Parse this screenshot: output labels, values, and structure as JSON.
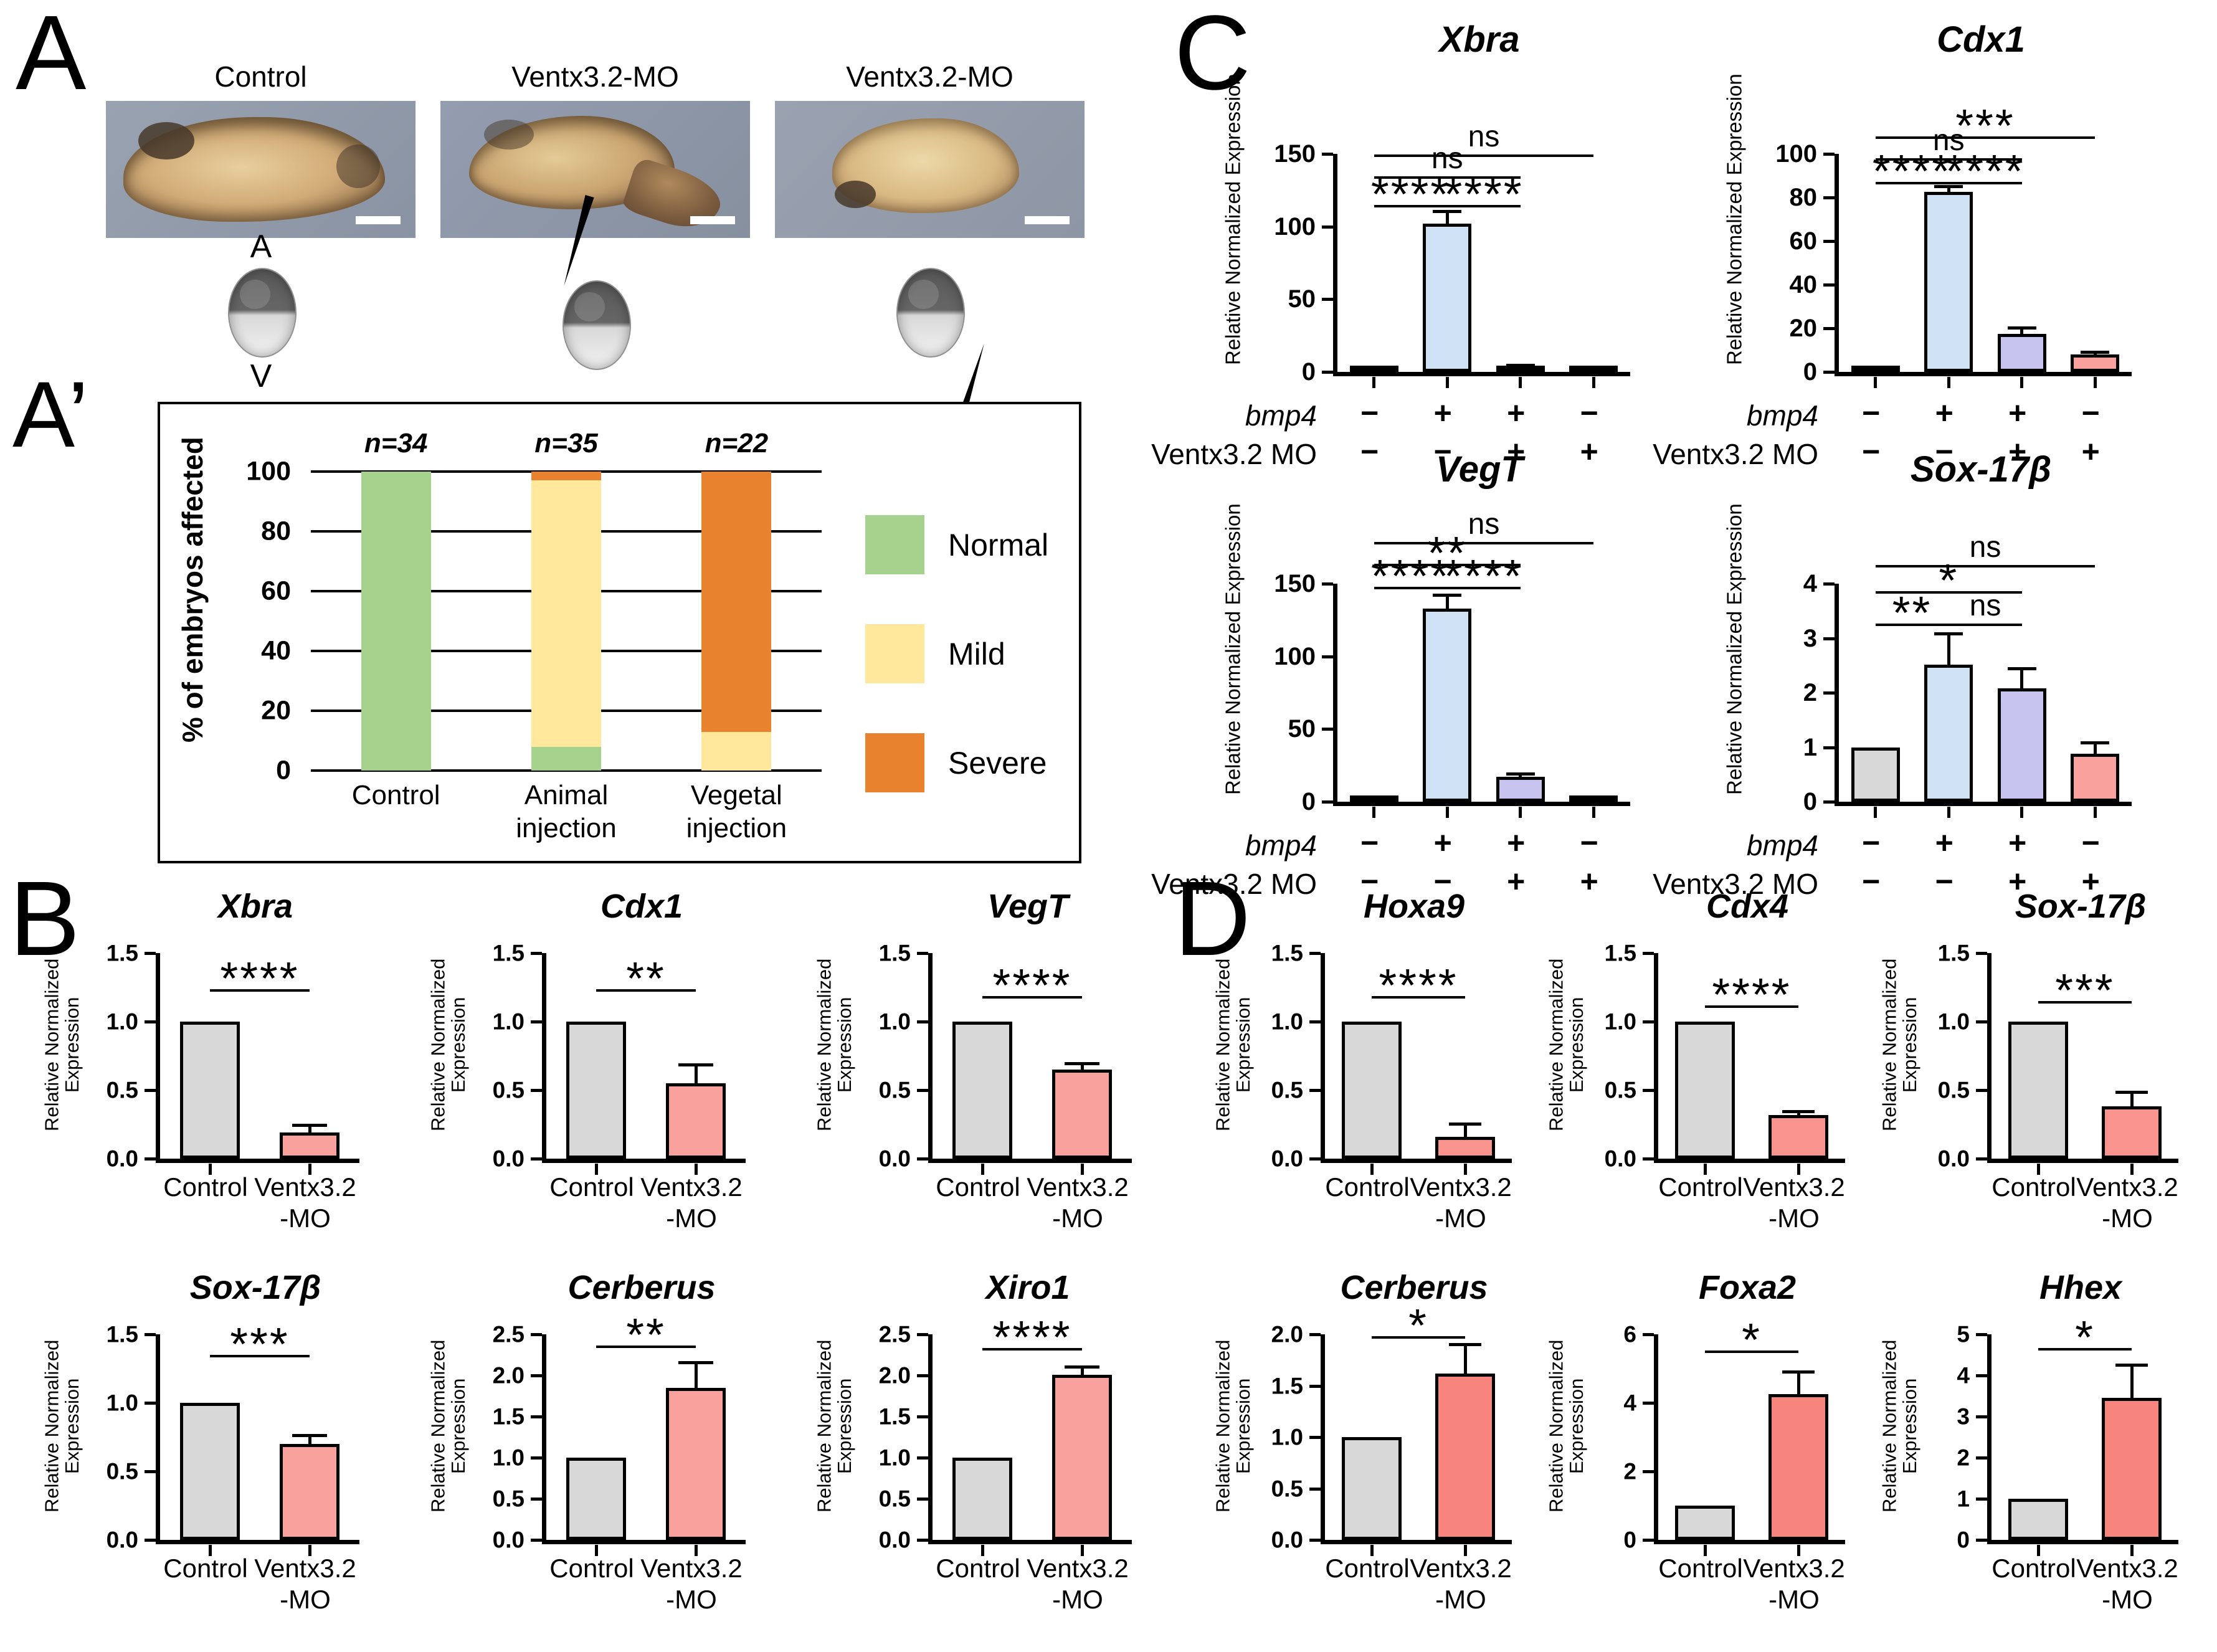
{
  "panelA": {
    "label": "A",
    "photos": [
      {
        "caption": "Control"
      },
      {
        "caption": "Ventx3.2-MO"
      },
      {
        "caption": "Ventx3.2-MO"
      }
    ],
    "schematic": {
      "top": "A",
      "bottom": "V"
    }
  },
  "panelA2": {
    "label": "A’"
  },
  "panelB": {
    "label": "B"
  },
  "panelC": {
    "label": "C"
  },
  "panelD": {
    "label": "D"
  },
  "chart_data": [
    {
      "id": "a-affected",
      "panel": "A2",
      "type": "stacked-bar",
      "title": "",
      "ylabel": "% of embryos affected",
      "ymax": 100,
      "yticks": [
        0,
        20,
        40,
        60,
        80,
        100
      ],
      "dec": 0,
      "categories": [
        "Control",
        "Animal\ninjection",
        "Vegetal\ninjection"
      ],
      "n_labels": [
        "n=34",
        "n=35",
        "n=22"
      ],
      "series": [
        {
          "name": "Normal",
          "color": "#A7D28E",
          "values": [
            100,
            8,
            0
          ]
        },
        {
          "name": "Mild",
          "color": "#FFE79B",
          "values": [
            0,
            89,
            13
          ]
        },
        {
          "name": "Severe",
          "color": "#E8822F",
          "values": [
            0,
            3,
            87
          ]
        }
      ],
      "legend_position": "right",
      "grid": true
    },
    {
      "id": "b-xbra",
      "panel": "B",
      "type": "bar",
      "title": "Xbra",
      "ylabel": "Relative Normalized Expression",
      "ymax": 1.5,
      "yticks": [
        0,
        0.5,
        1,
        1.5
      ],
      "dec": 1,
      "categories": [
        "Control",
        "Ventx3.2\n-MO"
      ],
      "values": [
        1.0,
        0.19
      ],
      "errors": [
        null,
        0.24
      ],
      "colors": [
        "#D8D8D8",
        "#F9A29D"
      ],
      "sig": [
        {
          "a": 0,
          "b": 1,
          "y": 1.22,
          "label": "****"
        }
      ]
    },
    {
      "id": "b-cdx1",
      "panel": "B",
      "type": "bar",
      "title": "Cdx1",
      "ylabel": "Relative Normalized Expression",
      "ymax": 1.5,
      "yticks": [
        0,
        0.5,
        1,
        1.5
      ],
      "dec": 1,
      "categories": [
        "Control",
        "Ventx3.2\n-MO"
      ],
      "values": [
        1.0,
        0.55
      ],
      "errors": [
        null,
        0.68
      ],
      "colors": [
        "#D8D8D8",
        "#F9A29D"
      ],
      "sig": [
        {
          "a": 0,
          "b": 1,
          "y": 1.22,
          "label": "**"
        }
      ]
    },
    {
      "id": "b-vegt",
      "panel": "B",
      "type": "bar",
      "title": "VegT",
      "ylabel": "Relative Normalized Expression",
      "ymax": 1.5,
      "yticks": [
        0,
        0.5,
        1,
        1.5
      ],
      "dec": 1,
      "categories": [
        "Control",
        "Ventx3.2\n-MO"
      ],
      "values": [
        1.0,
        0.65
      ],
      "errors": [
        null,
        0.69
      ],
      "colors": [
        "#D8D8D8",
        "#F9A29D"
      ],
      "sig": [
        {
          "a": 0,
          "b": 1,
          "y": 1.17,
          "label": "****"
        }
      ]
    },
    {
      "id": "b-sox17b",
      "panel": "B",
      "type": "bar",
      "title": "Sox-17β",
      "ylabel": "Relative Normalized Expression",
      "ymax": 1.5,
      "yticks": [
        0,
        0.5,
        1,
        1.5
      ],
      "dec": 1,
      "categories": [
        "Control",
        "Ventx3.2\n-MO"
      ],
      "values": [
        1.0,
        0.7
      ],
      "errors": [
        null,
        0.76
      ],
      "colors": [
        "#D8D8D8",
        "#F9A29D"
      ],
      "sig": [
        {
          "a": 0,
          "b": 1,
          "y": 1.33,
          "label": "***"
        }
      ]
    },
    {
      "id": "b-cerberus",
      "panel": "B",
      "type": "bar",
      "title": "Cerberus",
      "ylabel": "Relative Normalized Expression",
      "ymax": 2.5,
      "yticks": [
        0,
        0.5,
        1,
        1.5,
        2,
        2.5
      ],
      "dec": 1,
      "categories": [
        "Control",
        "Ventx3.2\n-MO"
      ],
      "values": [
        1.0,
        1.85
      ],
      "errors": [
        null,
        2.15
      ],
      "colors": [
        "#D8D8D8",
        "#F9A29D"
      ],
      "sig": [
        {
          "a": 0,
          "b": 1,
          "y": 2.33,
          "label": "**"
        }
      ]
    },
    {
      "id": "b-xiro1",
      "panel": "B",
      "type": "bar",
      "title": "Xiro1",
      "ylabel": "Relative Normalized Expression",
      "ymax": 2.5,
      "yticks": [
        0,
        0.5,
        1,
        1.5,
        2,
        2.5
      ],
      "dec": 1,
      "categories": [
        "Control",
        "Ventx3.2\n-MO"
      ],
      "values": [
        1.0,
        2.01
      ],
      "errors": [
        null,
        2.1
      ],
      "colors": [
        "#D8D8D8",
        "#F9A29D"
      ],
      "sig": [
        {
          "a": 0,
          "b": 1,
          "y": 2.3,
          "label": "****"
        }
      ]
    },
    {
      "id": "c-xbra",
      "panel": "C",
      "type": "bar",
      "title": "Xbra",
      "ylabel": "Relative Normalized Expression",
      "ymax": 150,
      "yticks": [
        0,
        50,
        100,
        150
      ],
      "dec": 0,
      "values": [
        1,
        102,
        3,
        0.6
      ],
      "errors": [
        null,
        110,
        4.5,
        null
      ],
      "colors": [
        "#3A3A3A",
        "#CEE1F5",
        "#C7C5F0",
        "#3A3A3A"
      ],
      "cond": [
        {
          "label": "bmp4",
          "sym": [
            "−",
            "+",
            "+",
            "−"
          ]
        },
        {
          "label": "Ventx3.2 MO",
          "sym": [
            "−",
            "−",
            "+",
            "+"
          ]
        }
      ],
      "sig": [
        {
          "a": 0,
          "b": 1,
          "y": 113,
          "label": "****"
        },
        {
          "a": 1,
          "b": 2,
          "y": 113,
          "label": "****"
        },
        {
          "a": 0,
          "b": 2,
          "y": 133,
          "label": "ns"
        },
        {
          "a": 0,
          "b": 3,
          "y": 148,
          "label": "ns"
        }
      ]
    },
    {
      "id": "c-cdx1",
      "panel": "C",
      "type": "bar",
      "title": "Cdx1",
      "ylabel": "Relative Normalized Expression",
      "ymax": 100,
      "yticks": [
        0,
        20,
        40,
        60,
        80,
        100
      ],
      "dec": 0,
      "values": [
        0.5,
        82.5,
        17.5,
        8
      ],
      "errors": [
        null,
        85,
        20,
        9
      ],
      "colors": [
        "#3A3A3A",
        "#CEE1F5",
        "#C7C5F0",
        "#F9A29D"
      ],
      "cond": [
        {
          "label": "bmp4",
          "sym": [
            "−",
            "+",
            "+",
            "−"
          ]
        },
        {
          "label": "Ventx3.2 MO",
          "sym": [
            "−",
            "−",
            "+",
            "+"
          ]
        }
      ],
      "sig": [
        {
          "a": 0,
          "b": 1,
          "y": 86,
          "label": "****"
        },
        {
          "a": 1,
          "b": 2,
          "y": 86,
          "label": "****"
        },
        {
          "a": 0,
          "b": 2,
          "y": 97,
          "label": "ns"
        },
        {
          "a": 0,
          "b": 3,
          "y": 107,
          "label": "***"
        }
      ]
    },
    {
      "id": "c-vegt",
      "panel": "C",
      "type": "bar",
      "title": "VegT",
      "ylabel": "Relative Normalized Expression",
      "ymax": 150,
      "yticks": [
        0,
        50,
        100,
        150
      ],
      "dec": 0,
      "values": [
        1,
        133,
        17,
        2.5
      ],
      "errors": [
        null,
        142,
        19,
        3.2
      ],
      "colors": [
        "#3A3A3A",
        "#CEE1F5",
        "#C7C5F0",
        "#2B2B2B"
      ],
      "cond": [
        {
          "label": "bmp4",
          "sym": [
            "−",
            "+",
            "+",
            "−"
          ]
        },
        {
          "label": "Ventx3.2 MO",
          "sym": [
            "−",
            "−",
            "+",
            "+"
          ]
        }
      ],
      "sig": [
        {
          "a": 0,
          "b": 1,
          "y": 146,
          "label": "****"
        },
        {
          "a": 1,
          "b": 2,
          "y": 146,
          "label": "****"
        },
        {
          "a": 0,
          "b": 2,
          "y": 162,
          "label": "**"
        },
        {
          "a": 0,
          "b": 3,
          "y": 177,
          "label": "ns"
        }
      ]
    },
    {
      "id": "c-sox17b",
      "panel": "C",
      "type": "bar",
      "title": "Sox-17β",
      "ylabel": "Relative Normalized Expression",
      "ymax": 4,
      "yticks": [
        0,
        1,
        2,
        3,
        4
      ],
      "dec": 0,
      "values": [
        1.0,
        2.52,
        2.08,
        0.88
      ],
      "errors": [
        null,
        3.07,
        2.43,
        1.08
      ],
      "colors": [
        "#D8D8D8",
        "#CEE1F5",
        "#C7C5F0",
        "#F9A29D"
      ],
      "cond": [
        {
          "label": "bmp4",
          "sym": [
            "−",
            "+",
            "+",
            "−"
          ]
        },
        {
          "label": "Ventx3.2 MO",
          "sym": [
            "−",
            "−",
            "+",
            "+"
          ]
        }
      ],
      "sig": [
        {
          "a": 0,
          "b": 1,
          "y": 3.22,
          "label": "**"
        },
        {
          "a": 1,
          "b": 2,
          "y": 3.22,
          "label": "ns"
        },
        {
          "a": 0,
          "b": 2,
          "y": 3.82,
          "label": "*"
        },
        {
          "a": 0,
          "b": 3,
          "y": 4.3,
          "label": "ns"
        }
      ]
    },
    {
      "id": "d-hoxa9",
      "panel": "D",
      "type": "bar",
      "title": "Hoxa9",
      "ylabel": "Relative Normalized Expression",
      "ymax": 1.5,
      "yticks": [
        0,
        0.5,
        1,
        1.5
      ],
      "dec": 1,
      "categories": [
        "Control",
        "Ventx3.2\n-MO"
      ],
      "values": [
        1.0,
        0.16
      ],
      "errors": [
        null,
        0.25
      ],
      "colors": [
        "#D8D8D8",
        "#F9938D"
      ],
      "sig": [
        {
          "a": 0,
          "b": 1,
          "y": 1.17,
          "label": "****"
        }
      ]
    },
    {
      "id": "d-cdx4",
      "panel": "D",
      "type": "bar",
      "title": "Cdx4",
      "ylabel": "Relative Normalized Expression",
      "ymax": 1.5,
      "yticks": [
        0,
        0.5,
        1,
        1.5
      ],
      "dec": 1,
      "categories": [
        "Control",
        "Ventx3.2\n-MO"
      ],
      "values": [
        1.0,
        0.32
      ],
      "errors": [
        null,
        0.34
      ],
      "colors": [
        "#D8D8D8",
        "#F9938D"
      ],
      "sig": [
        {
          "a": 0,
          "b": 1,
          "y": 1.1,
          "label": "****"
        }
      ]
    },
    {
      "id": "d-sox17b",
      "panel": "D",
      "type": "bar",
      "title": "Sox-17β",
      "ylabel": "Relative Normalized Expression",
      "ymax": 1.5,
      "yticks": [
        0,
        0.5,
        1,
        1.5
      ],
      "dec": 1,
      "categories": [
        "Control",
        "Ventx3.2\n-MO"
      ],
      "values": [
        1.0,
        0.38
      ],
      "errors": [
        null,
        0.48
      ],
      "colors": [
        "#D8D8D8",
        "#F9938D"
      ],
      "sig": [
        {
          "a": 0,
          "b": 1,
          "y": 1.13,
          "label": "***"
        }
      ]
    },
    {
      "id": "d-cerberus",
      "panel": "D",
      "type": "bar",
      "title": "Cerberus",
      "ylabel": "Relative Normalized Expression",
      "ymax": 2.0,
      "yticks": [
        0,
        0.5,
        1,
        1.5,
        2
      ],
      "dec": 1,
      "categories": [
        "Control",
        "Ventx3.2\n-MO"
      ],
      "values": [
        1.0,
        1.62
      ],
      "errors": [
        null,
        1.9
      ],
      "colors": [
        "#D8D8D8",
        "#F8857D"
      ],
      "sig": [
        {
          "a": 0,
          "b": 1,
          "y": 1.96,
          "label": "*"
        }
      ]
    },
    {
      "id": "d-foxa2",
      "panel": "D",
      "type": "bar",
      "title": "Foxa2",
      "ylabel": "Relative Normalized Expression",
      "ymax": 6,
      "yticks": [
        0,
        2,
        4,
        6
      ],
      "dec": 0,
      "categories": [
        "Control",
        "Ventx3.2\n-MO"
      ],
      "values": [
        1.0,
        4.25
      ],
      "errors": [
        null,
        4.9
      ],
      "colors": [
        "#D8D8D8",
        "#F8857D"
      ],
      "sig": [
        {
          "a": 0,
          "b": 1,
          "y": 5.45,
          "label": "*"
        }
      ]
    },
    {
      "id": "d-hhex",
      "panel": "D",
      "type": "bar",
      "title": "Hhex",
      "ylabel": "Relative Normalized Expression",
      "ymax": 5,
      "yticks": [
        0,
        1,
        2,
        3,
        4,
        5
      ],
      "dec": 0,
      "categories": [
        "Control",
        "Ventx3.2\n-MO"
      ],
      "values": [
        1.0,
        3.45
      ],
      "errors": [
        null,
        4.25
      ],
      "colors": [
        "#D8D8D8",
        "#F8857D"
      ],
      "sig": [
        {
          "a": 0,
          "b": 1,
          "y": 4.6,
          "label": "*"
        }
      ]
    }
  ]
}
